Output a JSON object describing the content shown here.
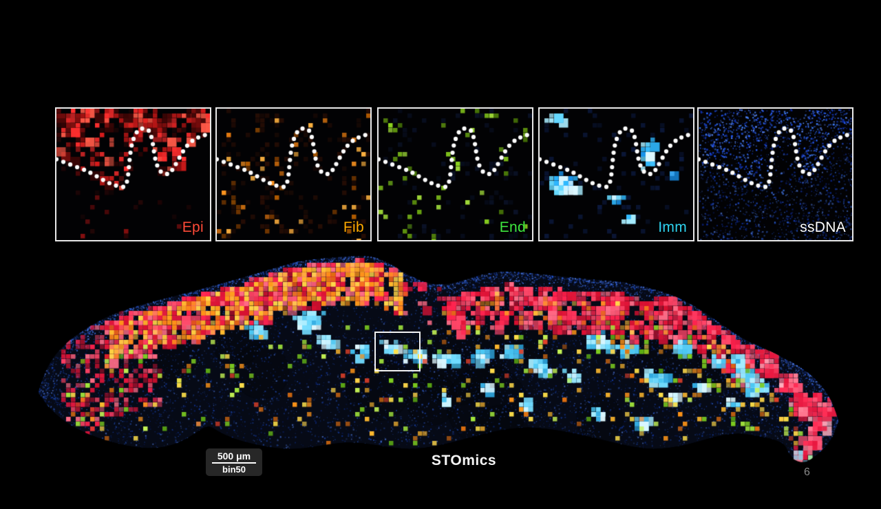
{
  "slide": {
    "background_color": "#000000",
    "page_number": "6"
  },
  "panel_row": {
    "border_color": "#e9e9e9",
    "boundary_dot_color": "#ffffff",
    "panels": [
      {
        "id": "epi",
        "label": "Epi",
        "label_color": "#ff4a38",
        "palette": [
          "#3a0505",
          "#7a0c0c",
          "#b01414",
          "#e01c1c",
          "#ff2e2e",
          "#ff5a48"
        ],
        "dim_color": "#2a0808"
      },
      {
        "id": "fib",
        "label": "Fib",
        "label_color": "#ffaa00",
        "palette": [
          "#7a3a00",
          "#b05a00",
          "#e07810",
          "#ff9520",
          "#ffb340"
        ],
        "dim_color": "#2c0f05"
      },
      {
        "id": "end",
        "label": "End",
        "label_color": "#3fe83f",
        "palette": [
          "#4a7a08",
          "#6aa510",
          "#8cd41e",
          "#aae83c"
        ],
        "dim_color": "#0a1228"
      },
      {
        "id": "imm",
        "label": "Imm",
        "label_color": "#2fd4f0",
        "palette": [
          "#1790e8",
          "#2fb8ff",
          "#66d9ff",
          "#a8ecff"
        ],
        "dim_color": "#0c1a40"
      },
      {
        "id": "ssdna",
        "label": "ssDNA",
        "label_color": "#ffffff",
        "palette": [
          "#1030b0",
          "#1845e0",
          "#2860ff",
          "#3f7fff",
          "#5c8cff"
        ],
        "dim_color": "#050a20"
      }
    ]
  },
  "main_image": {
    "caption": "STOmics",
    "caption_color": "#f5f5f5",
    "roi_border_color": "#ffffff",
    "scale_bar": {
      "length_label": "500 μm",
      "bin_label": "bin50",
      "box_color": "#2a2a2a",
      "text_color": "#ffffff"
    },
    "palette": {
      "nuclei": [
        "#0e2a8c",
        "#1440c0",
        "#1f55e0",
        "#2f6af0",
        "#5c8cff"
      ],
      "epidermis": [
        "#e01438",
        "#ff2450",
        "#ff4668",
        "#ff6e88",
        "#d81030"
      ],
      "stroma_orange": [
        "#ff9518",
        "#ffb92e",
        "#e07010",
        "#ffd84a"
      ],
      "immune": [
        "#2fa8e0",
        "#49c6f2",
        "#72dcff",
        "#a5ecff"
      ],
      "immune_core": "#dff8ff",
      "endothelial": [
        "#5fae14",
        "#7fd020",
        "#a2e63c",
        "#c5f455"
      ],
      "tail_pink": [
        "#ff2d55",
        "#ff5577",
        "#e81840",
        "#ff7c94"
      ],
      "bright_yellow": "#ffe14a",
      "edge_blue": "#4a80ff"
    }
  }
}
